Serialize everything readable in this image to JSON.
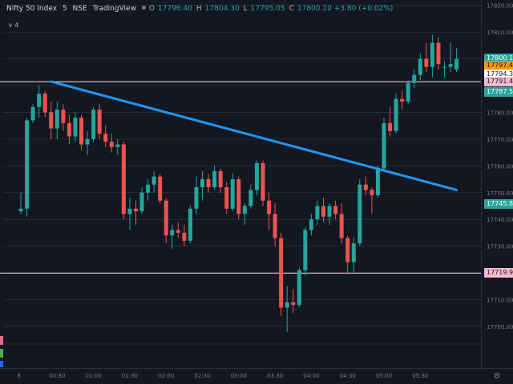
{
  "header": {
    "title": "Nifty 50 Index",
    "interval": "5",
    "exchange": "NSE",
    "source": "TradingView",
    "ohlc": [
      {
        "label": "O",
        "value": "17796.40"
      },
      {
        "label": "H",
        "value": "17804.30"
      },
      {
        "label": "L",
        "value": "17795.05"
      },
      {
        "label": "C",
        "value": "17800.10"
      }
    ],
    "change": "+3.80 (+0.02%)",
    "indicator_count": "4"
  },
  "colors": {
    "background": "#131722",
    "up": "#26a69a",
    "down": "#ef5350",
    "grid": "#363a45",
    "trendline": "#2196f3"
  },
  "price_tags": [
    {
      "value": "17800.10",
      "bg": "#26a69a",
      "fg": "#ffffff"
    },
    {
      "value": "17797.40",
      "bg": "#ff9800",
      "fg": "#131722"
    },
    {
      "value": "17794.30",
      "bg": "#ffffff",
      "fg": "#131722"
    },
    {
      "value": "17791.45",
      "bg": "#f8bbd0",
      "fg": "#131722"
    },
    {
      "value": "17787.50",
      "bg": "#26a69a",
      "fg": "#ffffff"
    },
    {
      "value": "17745.85",
      "bg": "#26a69a",
      "fg": "#ffffff"
    },
    {
      "value": "17719.90",
      "bg": "#f8bbd0",
      "fg": "#131722"
    }
  ],
  "chart_data": {
    "type": "candlestick",
    "ylim": [
      17694,
      17822
    ],
    "y_ticks": [
      17700,
      17710,
      17720,
      17730,
      17740,
      17750,
      17760,
      17770,
      17780,
      17790,
      17800,
      17810,
      17820
    ],
    "y_tick_labels": [
      "17700.00",
      "17710.00",
      "17720.00",
      "17730.00",
      "17740.00",
      "17750.00",
      "17760.00",
      "17770.00",
      "17780.00",
      "17790.00",
      "17800.00",
      "17810.00",
      "17820.00"
    ],
    "x_ticks": [
      {
        "label": "8",
        "index": -0.3
      },
      {
        "label": "00:30",
        "index": 6
      },
      {
        "label": "01:00",
        "index": 12
      },
      {
        "label": "01:30",
        "index": 18
      },
      {
        "label": "02:00",
        "index": 24
      },
      {
        "label": "02:30",
        "index": 30
      },
      {
        "label": "03:00",
        "index": 36
      },
      {
        "label": "03:30",
        "index": 42
      },
      {
        "label": "04:00",
        "index": 48
      },
      {
        "label": "04:30",
        "index": 54
      },
      {
        "label": "05:00",
        "index": 60
      },
      {
        "label": "05:30",
        "index": 66
      }
    ],
    "candles": [
      [
        17743,
        17750,
        17742,
        17744
      ],
      [
        17744,
        17778,
        17741,
        17777
      ],
      [
        17777,
        17783,
        17776,
        17782
      ],
      [
        17782,
        17790,
        17778,
        17787
      ],
      [
        17787,
        17788,
        17778,
        17780
      ],
      [
        17780,
        17784,
        17770,
        17774
      ],
      [
        17774,
        17784,
        17770,
        17781
      ],
      [
        17781,
        17783,
        17773,
        17776
      ],
      [
        17776,
        17779,
        17768,
        17771
      ],
      [
        17771,
        17780,
        17769,
        17778
      ],
      [
        17778,
        17779,
        17766,
        17768
      ],
      [
        17768,
        17773,
        17764,
        17770
      ],
      [
        17770,
        17782,
        17769,
        17781
      ],
      [
        17781,
        17783,
        17770,
        17772
      ],
      [
        17772,
        17775,
        17767,
        17769
      ],
      [
        17769,
        17772,
        17765,
        17767
      ],
      [
        17767,
        17770,
        17764,
        17768
      ],
      [
        17768,
        17769,
        17740,
        17742
      ],
      [
        17742,
        17748,
        17736,
        17744
      ],
      [
        17744,
        17747,
        17738,
        17743
      ],
      [
        17743,
        17752,
        17742,
        17750
      ],
      [
        17750,
        17755,
        17747,
        17753
      ],
      [
        17753,
        17758,
        17750,
        17756
      ],
      [
        17756,
        17757,
        17746,
        17747
      ],
      [
        17747,
        17748,
        17731,
        17734
      ],
      [
        17734,
        17738,
        17729,
        17736
      ],
      [
        17736,
        17739,
        17733,
        17735
      ],
      [
        17735,
        17738,
        17730,
        17732
      ],
      [
        17732,
        17745,
        17731,
        17744
      ],
      [
        17744,
        17756,
        17742,
        17752
      ],
      [
        17752,
        17758,
        17747,
        17755
      ],
      [
        17755,
        17757,
        17750,
        17752
      ],
      [
        17752,
        17760,
        17751,
        17758
      ],
      [
        17758,
        17759,
        17750,
        17752
      ],
      [
        17752,
        17754,
        17742,
        17744
      ],
      [
        17744,
        17757,
        17743,
        17755
      ],
      [
        17755,
        17756,
        17740,
        17742
      ],
      [
        17742,
        17746,
        17738,
        17745
      ],
      [
        17745,
        17753,
        17744,
        17751
      ],
      [
        17751,
        17762,
        17749,
        17761
      ],
      [
        17761,
        17762,
        17745,
        17747
      ],
      [
        17747,
        17750,
        17736,
        17742
      ],
      [
        17742,
        17746,
        17730,
        17733
      ],
      [
        17733,
        17735,
        17704,
        17707
      ],
      [
        17707,
        17715,
        17698,
        17709
      ],
      [
        17709,
        17714,
        17705,
        17708
      ],
      [
        17708,
        17722,
        17707,
        17721
      ],
      [
        17721,
        17737,
        17719,
        17736
      ],
      [
        17736,
        17742,
        17734,
        17740
      ],
      [
        17740,
        17747,
        17738,
        17745
      ],
      [
        17745,
        17748,
        17739,
        17741
      ],
      [
        17741,
        17746,
        17738,
        17745
      ],
      [
        17745,
        17747,
        17740,
        17742
      ],
      [
        17742,
        17746,
        17731,
        17733
      ],
      [
        17733,
        17734,
        17720,
        17724
      ],
      [
        17724,
        17733,
        17720,
        17731
      ],
      [
        17731,
        17755,
        17730,
        17753
      ],
      [
        17753,
        17756,
        17749,
        17751
      ],
      [
        17751,
        17752,
        17742,
        17749
      ],
      [
        17749,
        17760,
        17748,
        17759
      ],
      [
        17759,
        17778,
        17758,
        17776
      ],
      [
        17776,
        17782,
        17771,
        17773
      ],
      [
        17773,
        17787,
        17772,
        17785
      ],
      [
        17785,
        17788,
        17781,
        17784
      ],
      [
        17784,
        17792,
        17783,
        17791
      ],
      [
        17791,
        17796,
        17789,
        17794
      ],
      [
        17794,
        17802,
        17792,
        17800
      ],
      [
        17800,
        17806,
        17795,
        17797
      ],
      [
        17797,
        17809,
        17793,
        17806
      ],
      [
        17806,
        17808,
        17796,
        17798
      ],
      [
        17797,
        17799,
        17793,
        17797
      ],
      [
        17797,
        17806,
        17795,
        17798
      ],
      [
        17796,
        17804,
        17795,
        17800
      ]
    ],
    "trendline": {
      "from": {
        "index": 5,
        "price": 17791.5
      },
      "to": {
        "index": 72,
        "price": 17751.0
      }
    },
    "horizontal_lines": [
      17791.45,
      17719.9
    ]
  }
}
